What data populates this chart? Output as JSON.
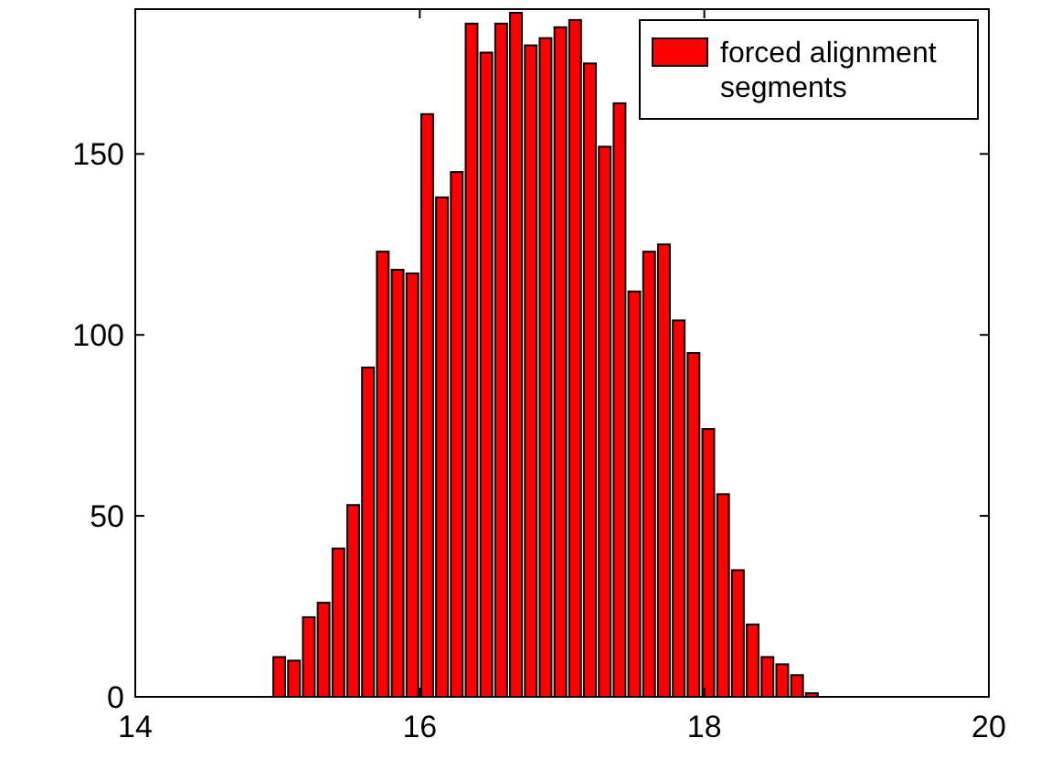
{
  "chart_data": {
    "type": "histogram",
    "bins": [
      14.96,
      15.064,
      15.168,
      15.272,
      15.376,
      15.48,
      15.584,
      15.688,
      15.792,
      15.896,
      16.0,
      16.104,
      16.208,
      16.312,
      16.416,
      16.52,
      16.624,
      16.728,
      16.832,
      16.936,
      17.04,
      17.144,
      17.248,
      17.352,
      17.456,
      17.56,
      17.664,
      17.768,
      17.872,
      17.976,
      18.08,
      18.184,
      18.288,
      18.392,
      18.496,
      18.6,
      18.704,
      18.808
    ],
    "series": [
      {
        "name": "forced alignment segments",
        "color": "#ff0000",
        "values": [
          11,
          10,
          22,
          26,
          41,
          53,
          91,
          123,
          118,
          117,
          161,
          138,
          145,
          186,
          178,
          186,
          189,
          180,
          182,
          185,
          187,
          175,
          152,
          164,
          112,
          123,
          125,
          104,
          95,
          74,
          56,
          35,
          20,
          11,
          9,
          6,
          1
        ]
      }
    ],
    "xlim": [
      14,
      20
    ],
    "xticks": [
      14,
      16,
      18,
      20
    ],
    "ylim": [
      0,
      190
    ],
    "yticks": [
      0,
      50,
      100,
      150
    ],
    "grid": false,
    "legend": "top right"
  }
}
